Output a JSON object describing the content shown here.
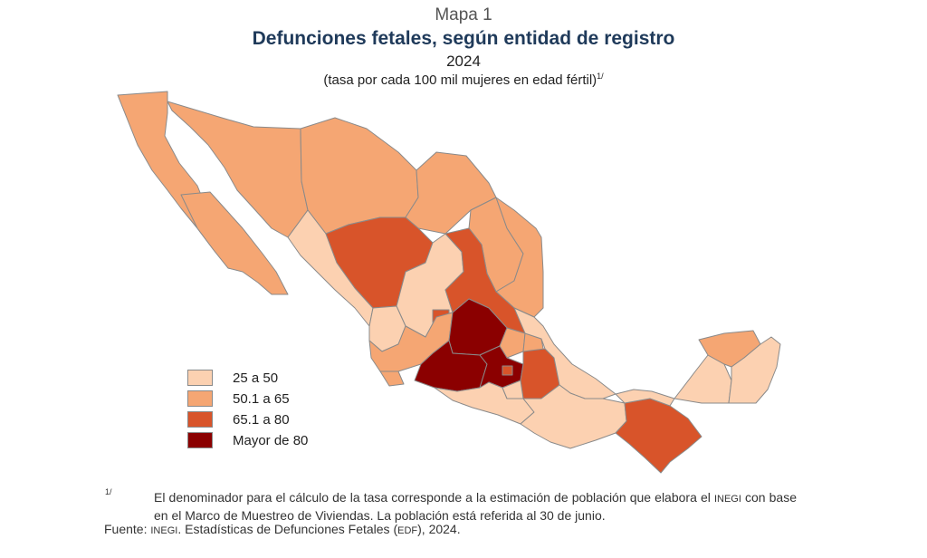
{
  "header": {
    "kicker": "Mapa 1",
    "title": "Defunciones fetales, según entidad de registro",
    "year": "2024",
    "subtitle": "(tasa por cada 100 mil mujeres en edad fértil)",
    "subtitle_ref": "1/"
  },
  "legend": {
    "items": [
      {
        "label": "25 a 50",
        "color": "#fcd1b1"
      },
      {
        "label": "50.1 a 65",
        "color": "#f5a673"
      },
      {
        "label": "65.1 a 80",
        "color": "#d8542a"
      },
      {
        "label": "Mayor de 80",
        "color": "#8b0000"
      }
    ]
  },
  "map": {
    "border_color": "#8a8a8a",
    "states": [
      {
        "name": "Baja California",
        "class": 1
      },
      {
        "name": "Baja California Sur",
        "class": 1
      },
      {
        "name": "Sonora",
        "class": 1
      },
      {
        "name": "Chihuahua",
        "class": 1
      },
      {
        "name": "Coahuila",
        "class": 1
      },
      {
        "name": "Nuevo León",
        "class": 1
      },
      {
        "name": "Tamaulipas",
        "class": 1
      },
      {
        "name": "Sinaloa",
        "class": 0
      },
      {
        "name": "Durango",
        "class": 2
      },
      {
        "name": "Zacatecas",
        "class": 0
      },
      {
        "name": "San Luis Potosí",
        "class": 2
      },
      {
        "name": "Nayarit",
        "class": 0
      },
      {
        "name": "Aguascalientes",
        "class": 2
      },
      {
        "name": "Jalisco",
        "class": 1
      },
      {
        "name": "Guanajuato",
        "class": 3
      },
      {
        "name": "Querétaro",
        "class": 1
      },
      {
        "name": "Hidalgo",
        "class": 1
      },
      {
        "name": "Colima",
        "class": 1
      },
      {
        "name": "Michoacán",
        "class": 3
      },
      {
        "name": "Estado de México",
        "class": 3
      },
      {
        "name": "Ciudad de México",
        "class": 2
      },
      {
        "name": "Tlaxcala",
        "class": 2
      },
      {
        "name": "Puebla",
        "class": 2
      },
      {
        "name": "Veracruz",
        "class": 0
      },
      {
        "name": "Guerrero",
        "class": 0
      },
      {
        "name": "Morelos",
        "class": 0
      },
      {
        "name": "Oaxaca",
        "class": 0
      },
      {
        "name": "Chiapas",
        "class": 2
      },
      {
        "name": "Tabasco",
        "class": 0
      },
      {
        "name": "Campeche",
        "class": 0
      },
      {
        "name": "Yucatán",
        "class": 1
      },
      {
        "name": "Quintana Roo",
        "class": 0
      }
    ]
  },
  "footnote": {
    "mark": "1/",
    "text_a": "El denominador para el cálculo de la tasa corresponde a la estimación de población que elabora el ",
    "inegi": "INEGI",
    "text_b": " con base en el Marco de Muestreo de Viviendas. La población está referida al 30 de junio."
  },
  "source": {
    "label": "Fuente:",
    "inegi": "INEGI",
    "text_a": ". Estadísticas de Defunciones Fetales (",
    "edf": "EDF",
    "text_b": "), 2024."
  }
}
